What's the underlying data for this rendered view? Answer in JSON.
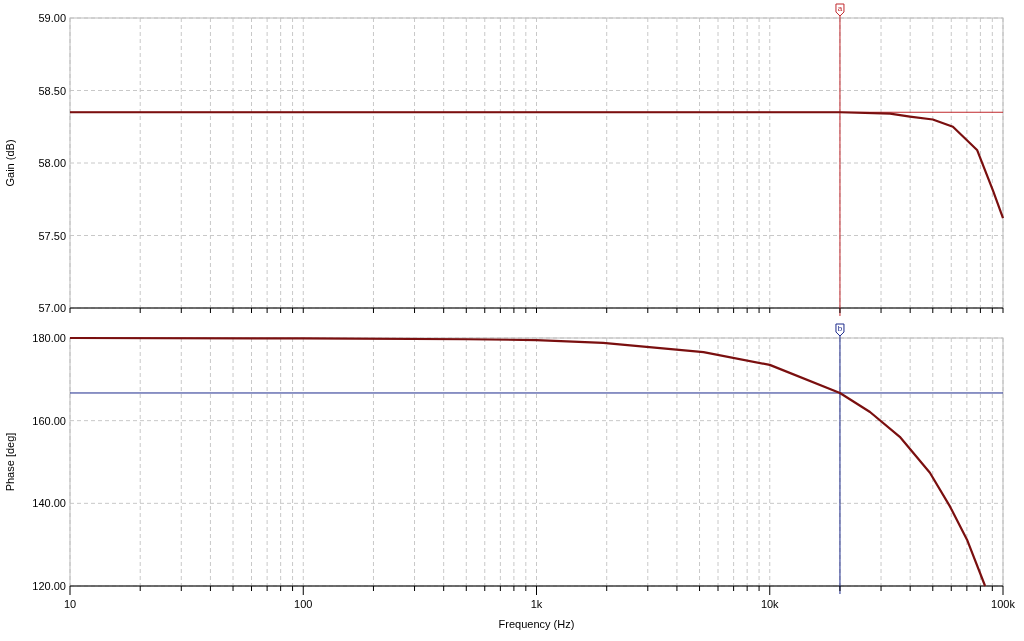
{
  "chart_data": [
    {
      "type": "line",
      "ylabel": "Gain (dB)",
      "log": "x",
      "grid": true,
      "tick_labels": "y",
      "marker": "none",
      "line_style": "solid",
      "xlim": [
        10,
        100000
      ],
      "xticks": [
        {
          "value": 10,
          "label": null
        },
        {
          "value": 20,
          "label": null
        },
        {
          "value": 30,
          "label": null
        },
        {
          "value": 40,
          "label": null
        },
        {
          "value": 50,
          "label": null
        },
        {
          "value": 60,
          "label": null
        },
        {
          "value": 70,
          "label": null
        },
        {
          "value": 80,
          "label": null
        },
        {
          "value": 90,
          "label": null
        },
        {
          "value": 100,
          "label": null
        },
        {
          "value": 200,
          "label": null
        },
        {
          "value": 300,
          "label": null
        },
        {
          "value": 400,
          "label": null
        },
        {
          "value": 500,
          "label": null
        },
        {
          "value": 600,
          "label": null
        },
        {
          "value": 700,
          "label": null
        },
        {
          "value": 800,
          "label": null
        },
        {
          "value": 900,
          "label": null
        },
        {
          "value": 1000,
          "label": null
        },
        {
          "value": 2000,
          "label": null
        },
        {
          "value": 3000,
          "label": null
        },
        {
          "value": 4000,
          "label": null
        },
        {
          "value": 5000,
          "label": null
        },
        {
          "value": 6000,
          "label": null
        },
        {
          "value": 7000,
          "label": null
        },
        {
          "value": 8000,
          "label": null
        },
        {
          "value": 9000,
          "label": null
        },
        {
          "value": 10000,
          "label": null
        },
        {
          "value": 20000,
          "label": null
        },
        {
          "value": 30000,
          "label": null
        },
        {
          "value": 40000,
          "label": null
        },
        {
          "value": 50000,
          "label": null
        },
        {
          "value": 60000,
          "label": null
        },
        {
          "value": 70000,
          "label": null
        },
        {
          "value": 80000,
          "label": null
        },
        {
          "value": 90000,
          "label": null
        },
        {
          "value": 100000,
          "label": null
        }
      ],
      "ylim": [
        57,
        59
      ],
      "yticks": [
        {
          "value": 57,
          "label": "57.00"
        },
        {
          "value": 57.5,
          "label": "57.50"
        },
        {
          "value": 58,
          "label": "58.00"
        },
        {
          "value": 58.5,
          "label": "58.50"
        },
        {
          "value": 59,
          "label": "59.00"
        }
      ],
      "x": [
        10,
        100,
        1000,
        10000,
        20000,
        32800,
        39900,
        50000,
        61000,
        77400,
        90600,
        100000
      ],
      "series": [
        {
          "color": "#7a0f0f",
          "values": [
            58.35,
            58.35,
            58.35,
            58.35,
            58.35,
            58.34,
            58.32,
            58.3,
            58.25,
            58.09,
            57.81,
            57.62
          ]
        }
      ],
      "ref_lines": [
        {
          "axis": "x",
          "value": 20000,
          "label": "a",
          "color": "#c0282d"
        },
        {
          "axis": "y",
          "value": 58.35,
          "color": "#c0282d"
        }
      ]
    },
    {
      "type": "line",
      "ylabel": "Phase [deg]",
      "xlabel": "Frequency (Hz)",
      "log": "x",
      "grid": true,
      "marker": "none",
      "line_style": "solid",
      "xlim": [
        10,
        100000
      ],
      "xticks": [
        10,
        {
          "value": 20,
          "label": null
        },
        {
          "value": 30,
          "label": null
        },
        {
          "value": 40,
          "label": null
        },
        {
          "value": 50,
          "label": null
        },
        {
          "value": 60,
          "label": null
        },
        {
          "value": 70,
          "label": null
        },
        {
          "value": 80,
          "label": null
        },
        {
          "value": 90,
          "label": null
        },
        100,
        {
          "value": 200,
          "label": null
        },
        {
          "value": 300,
          "label": null
        },
        {
          "value": 400,
          "label": null
        },
        {
          "value": 500,
          "label": null
        },
        {
          "value": 600,
          "label": null
        },
        {
          "value": 700,
          "label": null
        },
        {
          "value": 800,
          "label": null
        },
        {
          "value": 900,
          "label": null
        },
        {
          "value": 1000,
          "label": "1k"
        },
        {
          "value": 2000,
          "label": null
        },
        {
          "value": 3000,
          "label": null
        },
        {
          "value": 4000,
          "label": null
        },
        {
          "value": 5000,
          "label": null
        },
        {
          "value": 6000,
          "label": null
        },
        {
          "value": 7000,
          "label": null
        },
        {
          "value": 8000,
          "label": null
        },
        {
          "value": 9000,
          "label": null
        },
        {
          "value": 10000,
          "label": "10k"
        },
        {
          "value": 20000,
          "label": null
        },
        {
          "value": 30000,
          "label": null
        },
        {
          "value": 40000,
          "label": null
        },
        {
          "value": 50000,
          "label": null
        },
        {
          "value": 60000,
          "label": null
        },
        {
          "value": 70000,
          "label": null
        },
        {
          "value": 80000,
          "label": null
        },
        {
          "value": 90000,
          "label": null
        },
        {
          "value": 100000,
          "label": "100k"
        }
      ],
      "ylim": [
        120,
        180
      ],
      "yticks": [
        {
          "value": 120,
          "label": "120.00"
        },
        {
          "value": 140,
          "label": "140.00"
        },
        {
          "value": 160,
          "label": "160.00"
        },
        {
          "value": 180,
          "label": "180.00"
        }
      ],
      "x": [
        10,
        100,
        500,
        1000,
        1930,
        5200,
        10000,
        20000,
        26900,
        36100,
        48600,
        59300,
        70100,
        83800
      ],
      "series": [
        {
          "color": "#7a0f0f",
          "values": [
            180,
            179.9,
            179.7,
            179.5,
            178.8,
            176.6,
            173.5,
            166.7,
            162.1,
            156.1,
            147.4,
            139.2,
            131.2,
            120
          ]
        }
      ],
      "ref_lines": [
        {
          "axis": "x",
          "value": 20000,
          "label": "b",
          "color": "#1c2a8c"
        },
        {
          "axis": "y",
          "value": 166.7,
          "color": "#1c2a8c"
        }
      ]
    }
  ]
}
